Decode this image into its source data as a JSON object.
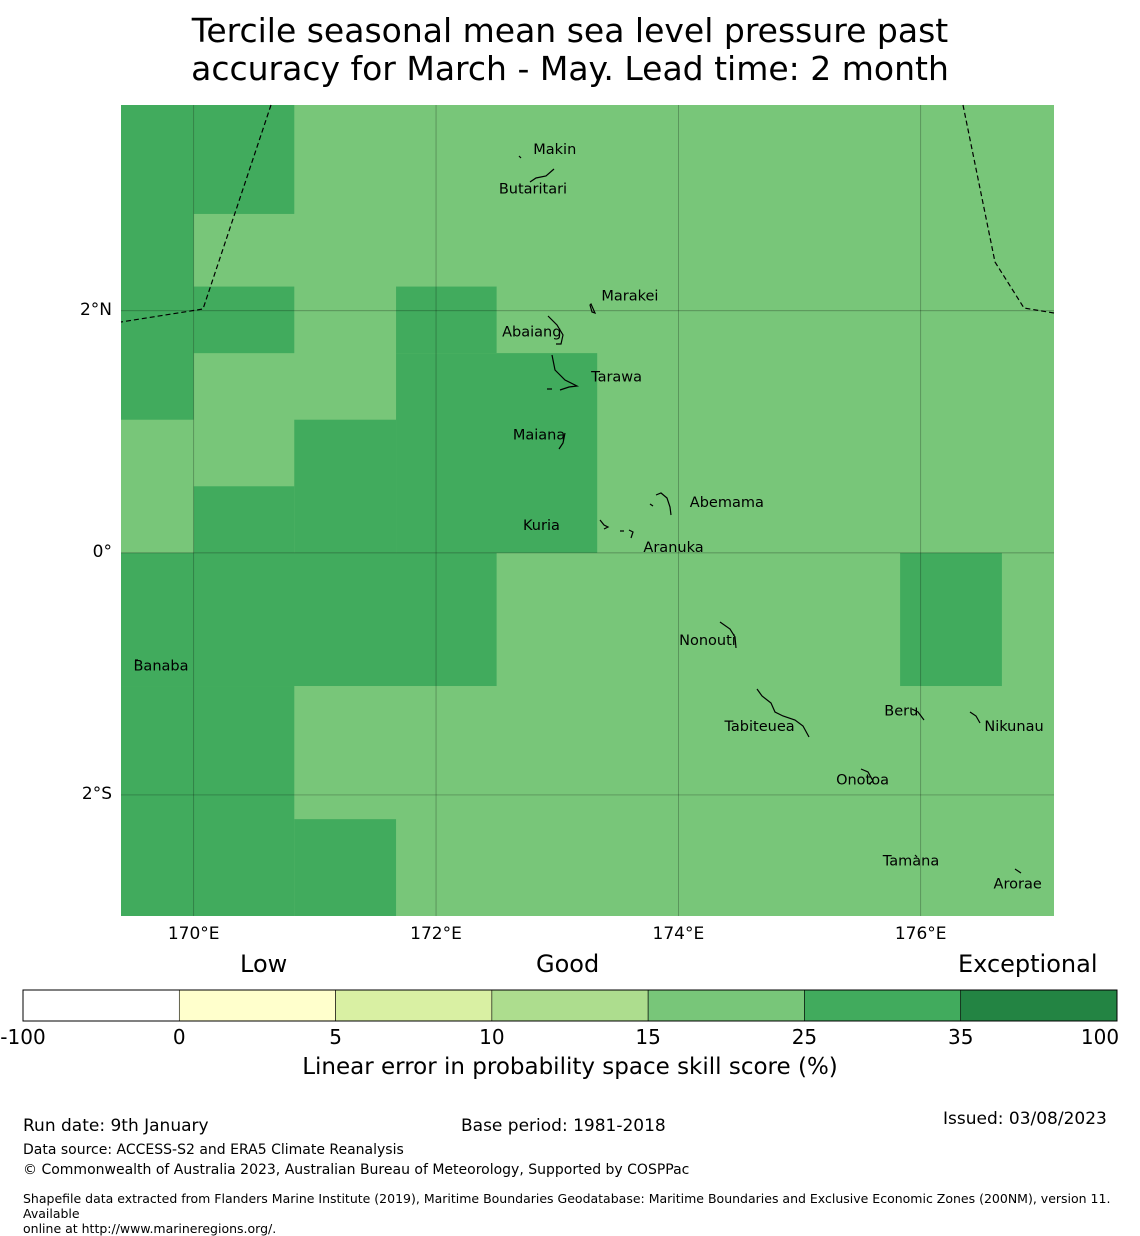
{
  "title_line1": "Tercile seasonal mean sea level pressure past",
  "title_line2": "accuracy for March - May. Lead time: 2 month",
  "map": {
    "lon_range": [
      169.4,
      177.1
    ],
    "lat_range": [
      -3.0,
      3.7
    ],
    "lon_ticks": [
      {
        "value": 170,
        "label": "170°E"
      },
      {
        "value": 172,
        "label": "172°E"
      },
      {
        "value": 174,
        "label": "174°E"
      },
      {
        "value": 176,
        "label": "176°E"
      }
    ],
    "lat_ticks": [
      {
        "value": 2,
        "label": "2°N"
      },
      {
        "value": 0,
        "label": "0°"
      },
      {
        "value": -2,
        "label": "2°S"
      }
    ],
    "category_colors": {
      "good": "#78c679",
      "very_good": "#41ab5d"
    },
    "cells_very_good": [
      [
        169.4,
        170.0,
        1.1,
        3.7
      ],
      [
        170.0,
        170.83,
        2.8,
        3.7
      ],
      [
        170.0,
        170.83,
        1.65,
        2.2
      ],
      [
        171.67,
        172.5,
        1.65,
        2.2
      ],
      [
        171.67,
        173.33,
        0.0,
        1.65
      ],
      [
        170.83,
        171.67,
        0.0,
        1.1
      ],
      [
        170.0,
        170.83,
        0.0,
        0.55
      ],
      [
        169.4,
        172.5,
        -1.1,
        0.0
      ],
      [
        169.4,
        170.83,
        -3.0,
        -1.1
      ],
      [
        170.83,
        171.67,
        -3.0,
        -2.2
      ],
      [
        175.83,
        176.67,
        -1.1,
        0.0
      ]
    ],
    "islands": [
      {
        "name": "Makin",
        "lon": 172.98,
        "lat": 3.33
      },
      {
        "name": "Butaritari",
        "lon": 172.8,
        "lat": 3.0
      },
      {
        "name": "Marakei",
        "lon": 173.6,
        "lat": 2.12
      },
      {
        "name": "Abaiang",
        "lon": 172.79,
        "lat": 1.82
      },
      {
        "name": "Tarawa",
        "lon": 173.49,
        "lat": 1.45
      },
      {
        "name": "Maiana",
        "lon": 172.85,
        "lat": 0.97
      },
      {
        "name": "Abemama",
        "lon": 174.4,
        "lat": 0.41
      },
      {
        "name": "Kuria",
        "lon": 172.87,
        "lat": 0.22
      },
      {
        "name": "Aranuka",
        "lon": 173.96,
        "lat": 0.04
      },
      {
        "name": "Banaba",
        "lon": 169.73,
        "lat": -0.94
      },
      {
        "name": "Nonouti",
        "lon": 174.24,
        "lat": -0.73
      },
      {
        "name": "Beru",
        "lon": 175.84,
        "lat": -1.31
      },
      {
        "name": "Nikunau",
        "lon": 176.77,
        "lat": -1.44
      },
      {
        "name": "Tabiteuea",
        "lon": 174.67,
        "lat": -1.44
      },
      {
        "name": "Onotoa",
        "lon": 175.52,
        "lat": -1.88
      },
      {
        "name": "Tamana",
        "lon": 175.92,
        "lat": -2.55
      },
      {
        "name": "Arorae",
        "lon": 176.8,
        "lat": -2.74
      }
    ]
  },
  "colorbar": {
    "headings": [
      "Low",
      "Good",
      "Exceptional"
    ],
    "boundaries": [
      "-100",
      "0",
      "5",
      "10",
      "15",
      "25",
      "35",
      "100"
    ],
    "colors": [
      "#ffffff",
      "#ffffcc",
      "#d9f0a3",
      "#addd8e",
      "#78c679",
      "#41ab5d",
      "#238443"
    ],
    "axis_label": "Linear error in probability space skill score (%)"
  },
  "footer": {
    "run_date": "Run date: 9th January",
    "base_period": "Base period: 1981-2018",
    "issued": "Issued: 03/08/2023",
    "data_source": "Data source: ACCESS-S2 and ERA5 Climate Reanalysis",
    "copyright": "© Commonwealth of Australia 2023, Australian Bureau of Meteorology, Supported by COSPPac",
    "shapefile_line1": "Shapefile data extracted from Flanders Marine Institute (2019), Maritime Boundaries Geodatabase: Maritime Boundaries and Exclusive Economic Zones (200NM), version 11. Available",
    "shapefile_line2": "online at http://www.marineregions.org/."
  }
}
